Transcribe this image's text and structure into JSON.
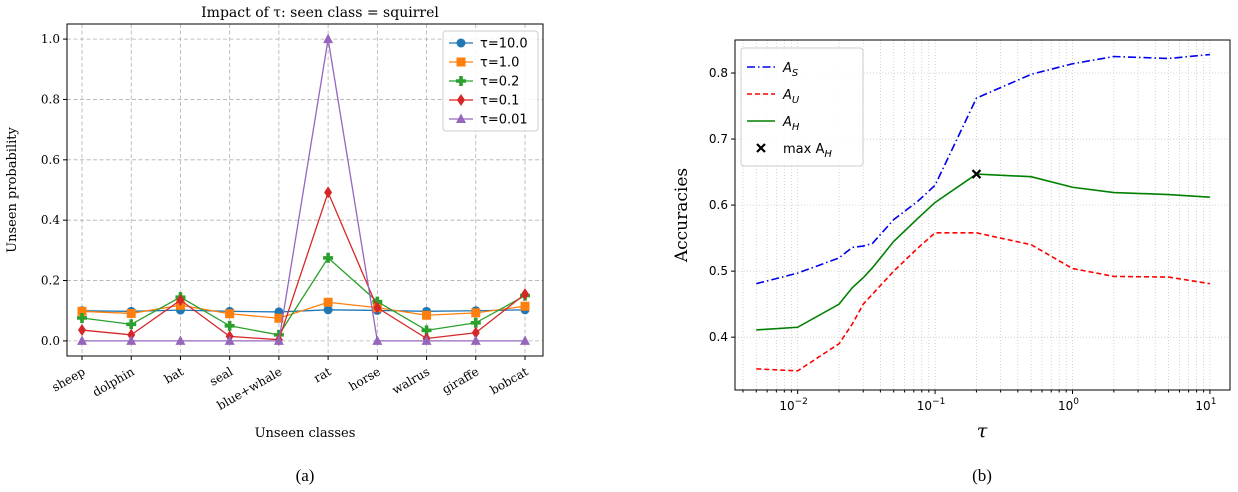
{
  "chart_data": [
    {
      "type": "line",
      "title": "Impact of τ: seen class = squirrel",
      "xlabel": "Unseen classes",
      "ylabel": "Unseen probability",
      "caption": "(a)",
      "categories": [
        "sheep",
        "dolphin",
        "bat",
        "seal",
        "blue+whale",
        "rat",
        "horse",
        "walrus",
        "giraffe",
        "bobcat"
      ],
      "ylim": [
        -0.05,
        1.05
      ],
      "yticks": [
        "0.0",
        "0.2",
        "0.4",
        "0.6",
        "0.8",
        "1.0"
      ],
      "grid": true,
      "legend_position": "top-right",
      "series": [
        {
          "name": "τ=10.0",
          "color": "#1f77b4",
          "marker": "circle",
          "values": [
            0.1,
            0.098,
            0.102,
            0.098,
            0.096,
            0.103,
            0.101,
            0.098,
            0.1,
            0.103
          ]
        },
        {
          "name": "τ=1.0",
          "color": "#ff7f0e",
          "marker": "square",
          "values": [
            0.098,
            0.091,
            0.118,
            0.09,
            0.075,
            0.128,
            0.11,
            0.085,
            0.093,
            0.115
          ]
        },
        {
          "name": "τ=0.2",
          "color": "#2ca02c",
          "marker": "plus",
          "values": [
            0.076,
            0.055,
            0.145,
            0.05,
            0.02,
            0.275,
            0.13,
            0.035,
            0.06,
            0.15
          ]
        },
        {
          "name": "τ=0.1",
          "color": "#d62728",
          "marker": "diamond",
          "values": [
            0.036,
            0.02,
            0.135,
            0.015,
            0.004,
            0.492,
            0.11,
            0.008,
            0.027,
            0.155
          ]
        },
        {
          "name": "τ=0.01",
          "color": "#9467bd",
          "marker": "triangle",
          "values": [
            0.0,
            0.0,
            0.0,
            0.0,
            0.0,
            1.0,
            0.0,
            0.0,
            0.0,
            0.0
          ]
        }
      ]
    },
    {
      "type": "line",
      "xlabel": "τ",
      "ylabel": "Accuracies",
      "caption": "(b)",
      "xscale": "log",
      "xlim": [
        0.0035,
        14
      ],
      "ylim": [
        0.32,
        0.85
      ],
      "yticks": [
        "0.4",
        "0.5",
        "0.6",
        "0.7",
        "0.8"
      ],
      "xticks": [
        "10",
        "10",
        "10",
        "10"
      ],
      "xtick_exponents": [
        "−2",
        "−1",
        "0",
        "1"
      ],
      "grid": true,
      "legend_position": "top-left",
      "x": [
        0.005,
        0.01,
        0.02,
        0.025,
        0.03,
        0.035,
        0.05,
        0.075,
        0.1,
        0.2,
        0.5,
        1,
        2,
        5,
        10
      ],
      "series": [
        {
          "name": "A",
          "subscript": "S",
          "color": "#0000ee",
          "style": "dashdot",
          "values": [
            0.481,
            0.497,
            0.52,
            0.536,
            0.538,
            0.542,
            0.578,
            0.606,
            0.63,
            0.762,
            0.798,
            0.814,
            0.825,
            0.822,
            0.828
          ]
        },
        {
          "name": "A",
          "subscript": "U",
          "color": "#ff0000",
          "style": "dashed",
          "values": [
            0.352,
            0.349,
            0.39,
            0.42,
            0.45,
            0.465,
            0.5,
            0.535,
            0.558,
            0.558,
            0.54,
            0.504,
            0.492,
            0.491,
            0.481
          ]
        },
        {
          "name": "A",
          "subscript": "H",
          "color": "#008000",
          "style": "solid",
          "values": [
            0.411,
            0.415,
            0.45,
            0.475,
            0.49,
            0.505,
            0.545,
            0.58,
            0.604,
            0.647,
            0.643,
            0.627,
            0.619,
            0.616,
            0.612
          ]
        }
      ],
      "marker_point": {
        "label": "max A",
        "subscript": "H",
        "x": 0.2,
        "y": 0.647,
        "color": "#000000"
      }
    }
  ]
}
